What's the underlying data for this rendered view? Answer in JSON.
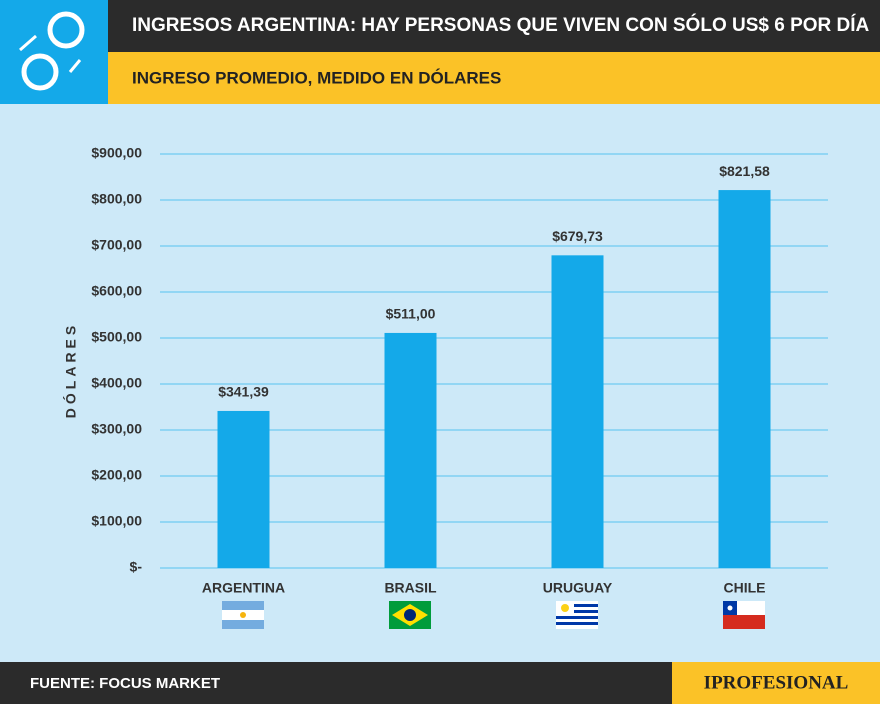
{
  "chart_data": {
    "type": "bar",
    "title": "INGRESOS ARGENTINA: HAY PERSONAS QUE VIVEN CON SÓLO US$ 6 POR DÍA",
    "subtitle": "INGRESO PROMEDIO, MEDIDO EN DÓLARES",
    "y_label": "DÓLARES",
    "categories": [
      "ARGENTINA",
      "BRASIL",
      "URUGUAY",
      "CHILE"
    ],
    "values": [
      341.39,
      511,
      679.73,
      821.58
    ],
    "value_labels": [
      "$341,39",
      "$511,00",
      "$679,73",
      "$821,58"
    ],
    "color": "#14a9e9",
    "ylim": [
      0,
      900
    ],
    "yticks": [
      {
        "value": 0,
        "label": "$-"
      },
      {
        "value": 100,
        "label": "$100,00"
      },
      {
        "value": 200,
        "label": "$200,00"
      },
      {
        "value": 300,
        "label": "$300,00"
      },
      {
        "value": 400,
        "label": "$400,00"
      },
      {
        "value": 500,
        "label": "$500,00"
      },
      {
        "value": 600,
        "label": "$600,00"
      },
      {
        "value": 700,
        "label": "$700,00"
      },
      {
        "value": 800,
        "label": "$800,00"
      },
      {
        "value": 900,
        "label": "$900,00"
      }
    ],
    "grid": true,
    "source": "FUENTE: FOCUS MARKET",
    "brand": "IPROFESIONAL"
  }
}
